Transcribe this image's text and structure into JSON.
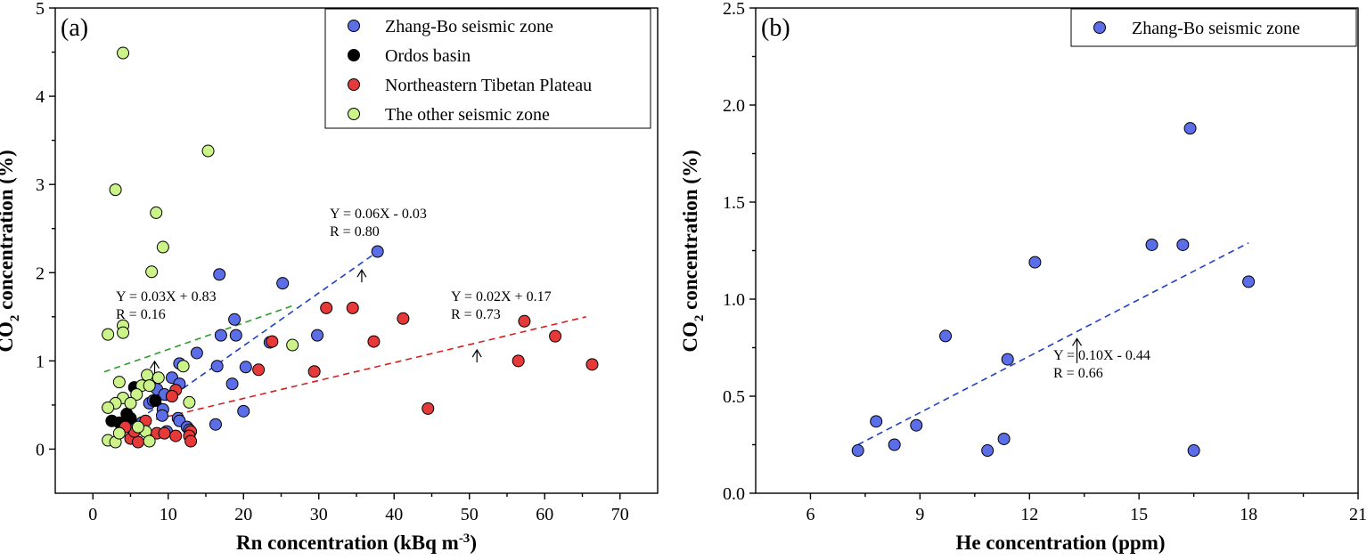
{
  "chart_data": [
    {
      "type": "scatter",
      "panel_label": "(a)",
      "xlabel": "Rn concentration (kBq m",
      "xlabel_sup": "-3",
      "xlabel_close": ")",
      "ylabel": "CO",
      "ylabel_sub": "2",
      "ylabel_rest": " concentration (%)",
      "xlim": [
        -5,
        75
      ],
      "ylim": [
        -0.5,
        5
      ],
      "xticks": [
        0,
        10,
        20,
        30,
        40,
        50,
        60,
        70
      ],
      "yticks": [
        0,
        1,
        2,
        3,
        4,
        5
      ],
      "legend": [
        "Zhang-Bo seismic zone",
        "Ordos basin",
        "Northeastern Tibetan Plateau",
        "The other seismic zone"
      ],
      "series": [
        {
          "name": "Zhang-Bo seismic zone",
          "color": "#5b6ee8",
          "points": [
            [
              37.8,
              2.24
            ],
            [
              16.8,
              1.98
            ],
            [
              25.2,
              1.88
            ],
            [
              18.8,
              1.47
            ],
            [
              17.0,
              1.29
            ],
            [
              19.0,
              1.29
            ],
            [
              29.8,
              1.29
            ],
            [
              23.5,
              1.21
            ],
            [
              13.8,
              1.09
            ],
            [
              11.5,
              0.97
            ],
            [
              16.5,
              0.94
            ],
            [
              20.3,
              0.93
            ],
            [
              10.5,
              0.81
            ],
            [
              11.5,
              0.74
            ],
            [
              18.5,
              0.74
            ],
            [
              8.5,
              0.68
            ],
            [
              9.5,
              0.62
            ],
            [
              10.5,
              0.6
            ],
            [
              7.5,
              0.52
            ],
            [
              9.3,
              0.45
            ],
            [
              20.0,
              0.43
            ],
            [
              9.2,
              0.38
            ],
            [
              11.3,
              0.35
            ],
            [
              11.5,
              0.32
            ],
            [
              16.3,
              0.28
            ],
            [
              12.5,
              0.25
            ],
            [
              12.8,
              0.22
            ],
            [
              9.8,
              0.2
            ],
            [
              6.5,
              0.3
            ],
            [
              8.0,
              0.55
            ]
          ]
        },
        {
          "name": "Ordos basin",
          "color": "#000000",
          "points": [
            [
              5.5,
              0.7
            ],
            [
              8.3,
              0.55
            ],
            [
              4.5,
              0.4
            ],
            [
              3.5,
              0.3
            ],
            [
              2.5,
              0.32
            ],
            [
              5.0,
              0.35
            ]
          ]
        },
        {
          "name": "Northeastern Tibetan Plateau",
          "color": "#e63a3a",
          "points": [
            [
              31.0,
              1.6
            ],
            [
              34.5,
              1.6
            ],
            [
              41.2,
              1.48
            ],
            [
              57.3,
              1.45
            ],
            [
              61.4,
              1.28
            ],
            [
              37.3,
              1.22
            ],
            [
              23.8,
              1.22
            ],
            [
              22.0,
              0.9
            ],
            [
              29.4,
              0.88
            ],
            [
              56.5,
              1.0
            ],
            [
              66.3,
              0.96
            ],
            [
              44.5,
              0.46
            ],
            [
              11.0,
              0.67
            ],
            [
              10.5,
              0.6
            ],
            [
              7.0,
              0.32
            ],
            [
              8.5,
              0.18
            ],
            [
              9.5,
              0.18
            ],
            [
              11.0,
              0.15
            ],
            [
              13.0,
              0.2
            ],
            [
              12.8,
              0.15
            ],
            [
              13.0,
              0.09
            ],
            [
              5.0,
              0.12
            ],
            [
              6.0,
              0.08
            ],
            [
              5.5,
              0.2
            ],
            [
              4.3,
              0.25
            ]
          ]
        },
        {
          "name": "The other seismic zone",
          "color": "#ccf28a",
          "points": [
            [
              4.0,
              4.49
            ],
            [
              15.3,
              3.38
            ],
            [
              3.0,
              2.94
            ],
            [
              8.4,
              2.68
            ],
            [
              9.3,
              2.29
            ],
            [
              7.8,
              2.01
            ],
            [
              4.0,
              1.4
            ],
            [
              4.0,
              1.32
            ],
            [
              2.0,
              1.3
            ],
            [
              26.5,
              1.18
            ],
            [
              12.0,
              0.94
            ],
            [
              7.2,
              0.84
            ],
            [
              8.7,
              0.81
            ],
            [
              3.5,
              0.76
            ],
            [
              6.5,
              0.72
            ],
            [
              7.5,
              0.72
            ],
            [
              5.8,
              0.62
            ],
            [
              4.0,
              0.58
            ],
            [
              3.0,
              0.52
            ],
            [
              12.8,
              0.53
            ],
            [
              2.0,
              0.47
            ],
            [
              5.0,
              0.52
            ],
            [
              7.0,
              0.2
            ],
            [
              2.0,
              0.1
            ],
            [
              3.0,
              0.08
            ],
            [
              7.5,
              0.09
            ],
            [
              6.0,
              0.25
            ],
            [
              3.5,
              0.18
            ]
          ]
        }
      ],
      "fits": [
        {
          "color": "#2b9b2b",
          "x": [
            1.5,
            26.5
          ],
          "y": [
            0.875,
            1.625
          ],
          "equation": "Y = 0.03X + 0.83",
          "r": "R = 0.16",
          "arrow_x": 8.2
        },
        {
          "color": "#1f3fc8",
          "x": [
            5,
            38
          ],
          "y": [
            0.27,
            2.25
          ],
          "equation": "Y = 0.06X - 0.03",
          "r": "R = 0.80",
          "arrow_x": 35.7
        },
        {
          "color": "#d62020",
          "x": [
            7,
            65.5
          ],
          "y": [
            0.31,
            1.5
          ],
          "equation": "Y = 0.02X + 0.17",
          "r": "R = 0.73",
          "arrow_x": 51.0
        }
      ]
    },
    {
      "type": "scatter",
      "panel_label": "(b)",
      "xlabel": "He concentration (ppm)",
      "ylabel": "CO",
      "ylabel_sub": "2",
      "ylabel_rest": " concentration (%)",
      "xlim": [
        4.5,
        21
      ],
      "ylim": [
        0,
        2.5
      ],
      "xticks": [
        6,
        9,
        12,
        15,
        18,
        21
      ],
      "yticks": [
        0.0,
        0.5,
        1.0,
        1.5,
        2.0,
        2.5
      ],
      "legend": [
        "Zhang-Bo seismic zone"
      ],
      "series": [
        {
          "name": "Zhang-Bo seismic zone",
          "color": "#5b6ee8",
          "points": [
            [
              16.4,
              1.88
            ],
            [
              15.35,
              1.28
            ],
            [
              16.2,
              1.28
            ],
            [
              12.15,
              1.19
            ],
            [
              18.0,
              1.09
            ],
            [
              9.7,
              0.81
            ],
            [
              11.4,
              0.69
            ],
            [
              7.8,
              0.37
            ],
            [
              8.9,
              0.35
            ],
            [
              8.3,
              0.25
            ],
            [
              11.3,
              0.28
            ],
            [
              7.3,
              0.22
            ],
            [
              10.85,
              0.22
            ],
            [
              16.5,
              0.22
            ]
          ]
        }
      ],
      "fits": [
        {
          "color": "#1f3fc8",
          "x": [
            7.3,
            18.0
          ],
          "y": [
            0.25,
            1.29
          ],
          "equation": "Y = 0.10X - 0.44",
          "r": "R = 0.66",
          "arrow_x": 13.3
        }
      ]
    }
  ]
}
